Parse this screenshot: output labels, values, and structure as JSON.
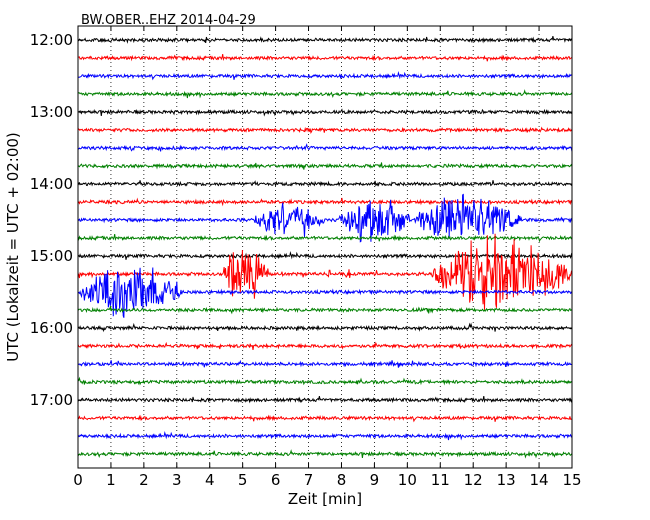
{
  "chart_data": {
    "type": "line",
    "title": "BW.OBER..EHZ 2014-04-29",
    "xlabel": "Zeit  [min]",
    "ylabel": "UTC (Lokalzeit = UTC + 02:00)",
    "xlim": [
      0,
      15
    ],
    "x_ticks": [
      "0",
      "1",
      "2",
      "3",
      "4",
      "5",
      "6",
      "7",
      "8",
      "9",
      "10",
      "11",
      "12",
      "13",
      "14",
      "15"
    ],
    "y_ticks": [
      "12:00",
      "13:00",
      "14:00",
      "15:00",
      "16:00",
      "17:00"
    ],
    "vertical_grid": "dotted, every 1 min",
    "trace_interval_min": 15,
    "start_time": "12:00",
    "num_traces": 24,
    "trace_colors": [
      "#000000",
      "#ff0000",
      "#0000ff",
      "#008000"
    ],
    "events": [
      {
        "trace_start": "14:30",
        "from_min": 5.3,
        "to_min": 7.5,
        "amplitude": 0.8
      },
      {
        "trace_start": "14:30",
        "from_min": 7.9,
        "to_min": 10.1,
        "amplitude": 1.1
      },
      {
        "trace_start": "14:30",
        "from_min": 10.2,
        "to_min": 13.5,
        "amplitude": 1.1
      },
      {
        "trace_start": "15:15",
        "from_min": 4.4,
        "to_min": 5.8,
        "amplitude": 1.4
      },
      {
        "trace_start": "15:15",
        "from_min": 7.5,
        "to_min": 7.7,
        "amplitude": 0.3
      },
      {
        "trace_start": "15:15",
        "from_min": 8.1,
        "to_min": 8.3,
        "amplitude": 0.3
      },
      {
        "trace_start": "15:15",
        "from_min": 10.7,
        "to_min": 15.0,
        "amplitude": 1.7
      },
      {
        "trace_start": "15:30",
        "from_min": 0.0,
        "to_min": 3.2,
        "amplitude": 1.2
      }
    ]
  }
}
